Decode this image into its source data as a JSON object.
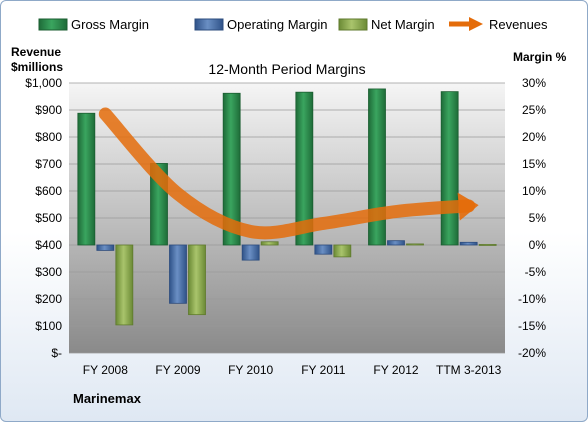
{
  "chart_data": {
    "type": "bar",
    "title": "12-Month Period Margins",
    "company": "Marinemax",
    "left_axis_label": [
      "Revenue",
      "$millions"
    ],
    "right_axis_label": "Margin %",
    "categories": [
      "FY 2008",
      "FY 2009",
      "FY 2010",
      "FY 2011",
      "FY 2012",
      "TTM 3-2013"
    ],
    "left_ticks": [
      "$-",
      "$100",
      "$200",
      "$300",
      "$400",
      "$500",
      "$600",
      "$700",
      "$800",
      "$900",
      "$1,000"
    ],
    "right_ticks": [
      "-20%",
      "-15%",
      "-10%",
      "-5%",
      "0%",
      "5%",
      "10%",
      "15%",
      "20%",
      "25%",
      "30%"
    ],
    "ylim_left": [
      0,
      1000
    ],
    "ylim_right": [
      -20,
      30
    ],
    "legend_position": "top",
    "series": [
      {
        "name": "Gross Margin",
        "axis": "right",
        "kind": "bar",
        "color": "#2e8b4e",
        "values": [
          24.4,
          15.1,
          28.1,
          28.3,
          28.9,
          28.4
        ]
      },
      {
        "name": "Operating Margin",
        "axis": "right",
        "kind": "bar",
        "color": "#4a6fa5",
        "values": [
          -1.0,
          -10.8,
          -2.8,
          -1.7,
          0.8,
          0.5
        ]
      },
      {
        "name": "Net Margin",
        "axis": "right",
        "kind": "bar",
        "color": "#8aa84e",
        "values": [
          -14.8,
          -12.9,
          0.6,
          -2.2,
          0.2,
          0.1
        ]
      },
      {
        "name": "Revenues",
        "axis": "left",
        "kind": "line",
        "color": "#e46c0a",
        "values": [
          885,
          589,
          450,
          480,
          524,
          545
        ]
      }
    ]
  }
}
